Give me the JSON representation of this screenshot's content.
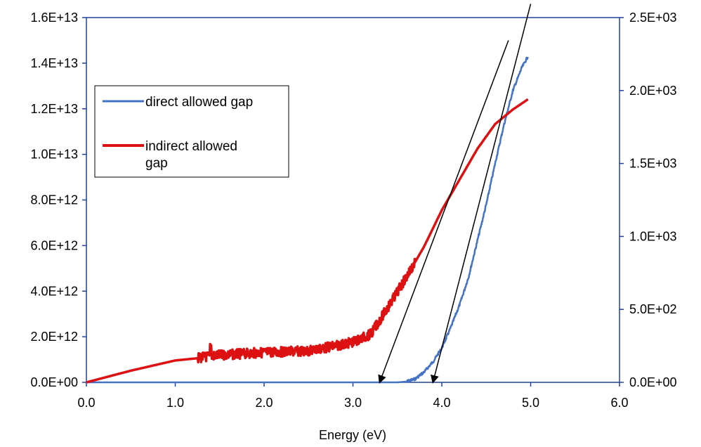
{
  "chart_data": {
    "type": "line",
    "title": "",
    "xlabel": "Energy (eV)",
    "ylabel_left": "",
    "ylabel_right": "",
    "xlim": [
      0,
      6
    ],
    "ylim_left": [
      0,
      16000000000000.0
    ],
    "ylim_right": [
      0,
      2500
    ],
    "x_ticks": [
      0,
      1,
      2,
      3,
      4,
      5,
      6
    ],
    "x_tick_labels": [
      "0.0",
      "1.0",
      "2.0",
      "3.0",
      "4.0",
      "5.0",
      "6.0"
    ],
    "y_left_ticks": [
      0,
      2000000000000.0,
      4000000000000.0,
      6000000000000.0,
      8000000000000.0,
      10000000000000.0,
      12000000000000.0,
      14000000000000.0,
      16000000000000.0
    ],
    "y_left_tick_labels": [
      "0.0E+00",
      "2.0E+12",
      "4.0E+12",
      "6.0E+12",
      "8.0E+12",
      "1.0E+13",
      "1.2E+13",
      "1.4E+13",
      "1.6E+13"
    ],
    "y_right_ticks": [
      0,
      500,
      1000,
      1500,
      2000,
      2500
    ],
    "y_right_tick_labels": [
      "0.0E+00",
      "5.0E+02",
      "1.0E+03",
      "1.5E+03",
      "2.0E+03",
      "2.5E+03"
    ],
    "grid": false,
    "legend_position": "upper-left",
    "series": [
      {
        "name": "direct allowed gap",
        "axis": "left",
        "color": "#4472C4",
        "x": [
          0.0,
          1.0,
          2.0,
          3.0,
          3.3,
          3.5,
          3.6,
          3.7,
          3.8,
          3.9,
          4.0,
          4.1,
          4.2,
          4.3,
          4.4,
          4.5,
          4.6,
          4.7,
          4.8,
          4.9,
          4.97
        ],
        "y": [
          0,
          0,
          0,
          0,
          0,
          0,
          30000000000.0,
          150000000000.0,
          450000000000.0,
          900000000000.0,
          1500000000000.0,
          2400000000000.0,
          3400000000000.0,
          4600000000000.0,
          6200000000000.0,
          7800000000000.0,
          9600000000000.0,
          11300000000000.0,
          12800000000000.0,
          13800000000000.0,
          14300000000000.0
        ]
      },
      {
        "name": "indirect allowed gap",
        "axis": "right",
        "color": "#DD1111",
        "x": [
          0.0,
          0.5,
          1.0,
          1.25,
          1.4,
          1.6,
          2.0,
          2.5,
          2.8,
          3.0,
          3.2,
          3.4,
          3.6,
          3.8,
          4.0,
          4.2,
          4.4,
          4.6,
          4.8,
          4.97
        ],
        "y": [
          0,
          80,
          150,
          165,
          180,
          190,
          205,
          215,
          250,
          275,
          330,
          520,
          720,
          930,
          1180,
          1390,
          1600,
          1770,
          1870,
          1940
        ]
      }
    ],
    "annotations": [
      {
        "type": "arrow",
        "from": [
          4.75,
          15000000000000.0
        ],
        "to": [
          3.3,
          0
        ]
      },
      {
        "type": "arrow",
        "from": [
          5.0,
          16600000000000.0
        ],
        "to": [
          3.9,
          0
        ]
      }
    ]
  }
}
